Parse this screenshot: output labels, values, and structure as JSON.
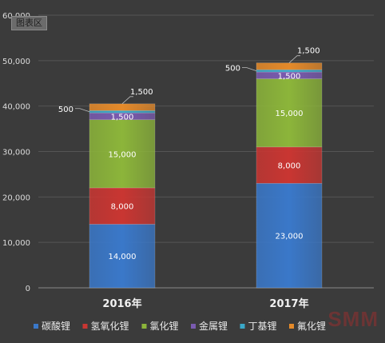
{
  "chart_data": {
    "type": "bar",
    "stacked": true,
    "categories": [
      "2016年",
      "2017年"
    ],
    "ylim": [
      0,
      60000
    ],
    "yticks": [
      "0",
      "10,000",
      "20,000",
      "30,000",
      "40,000",
      "50,000",
      "60,000"
    ],
    "grid": true,
    "legend_position": "bottom",
    "series": [
      {
        "name": "碳酸锂",
        "color": "#3a78c9",
        "values": [
          14000,
          23000
        ],
        "labels": [
          "14,000",
          "23,000"
        ]
      },
      {
        "name": "氢氧化锂",
        "color": "#c93632",
        "values": [
          8000,
          8000
        ],
        "labels": [
          "8,000",
          "8,000"
        ]
      },
      {
        "name": "氯化锂",
        "color": "#8cb53a",
        "values": [
          15000,
          15000
        ],
        "labels": [
          "15,000",
          "15,000"
        ]
      },
      {
        "name": "金属锂",
        "color": "#7a5bb0",
        "values": [
          1500,
          1500
        ],
        "labels": [
          "1,500",
          "1,500"
        ]
      },
      {
        "name": "丁基锂",
        "color": "#3aa8c8",
        "values": [
          500,
          500
        ],
        "labels": [
          "500",
          "500"
        ]
      },
      {
        "name": "氟化锂",
        "color": "#e58a2a",
        "values": [
          1500,
          1500
        ],
        "labels": [
          "1,500",
          "1,500"
        ]
      }
    ]
  },
  "ui": {
    "badge": "图表区",
    "watermark": "SMM"
  }
}
